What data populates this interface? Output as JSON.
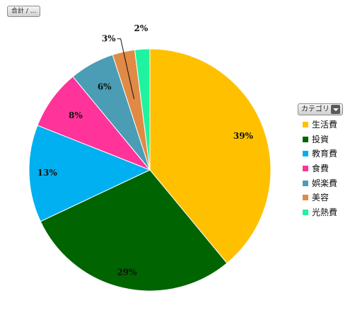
{
  "field_button": {
    "label": "合計 / ..."
  },
  "legend_button": {
    "label": "カテゴリ"
  },
  "chart_data": {
    "type": "pie",
    "title": "",
    "categories": [
      "生活費",
      "投資",
      "教育費",
      "食費",
      "娯楽費",
      "美容",
      "光熱費"
    ],
    "values": [
      39,
      29,
      13,
      8,
      6,
      3,
      2
    ],
    "data_labels": [
      "39%",
      "29%",
      "13%",
      "8%",
      "6%",
      "3%",
      "2%"
    ],
    "colors": [
      "#FFC000",
      "#006400",
      "#00B0F0",
      "#FF3399",
      "#4A9DB5",
      "#E08A45",
      "#1FF2A0"
    ],
    "legend_position": "right",
    "start_angle": "12 o'clock",
    "direction": "clockwise"
  }
}
